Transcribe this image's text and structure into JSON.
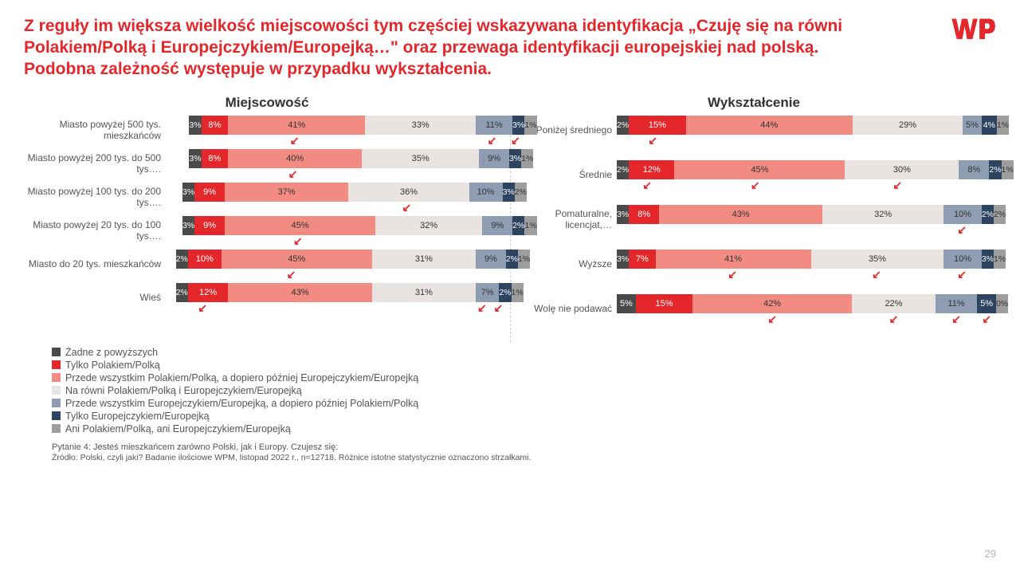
{
  "title": "Z reguły im większa wielkość miejscowości tym częściej wskazywana identyfikacja „Czuję się na równi Polakiem/Polką i Europejczykiem/Europejką…\" oraz przewaga identyfikacji europejskiej nad polską. Podobna zależność występuje w przypadku wykształcenia.",
  "logo_color": "#e3272a",
  "page_num": "29",
  "palette": {
    "none_above": "#4a4a4a",
    "only_pole": "#e3272a",
    "pole_first": "#f28b82",
    "equal": "#e9e4e2",
    "euro_first": "#8f9db2",
    "only_euro": "#2c4460",
    "neither": "#9e9e9e"
  },
  "legend": [
    {
      "key": "none_above",
      "label": "Żadne z powyższych"
    },
    {
      "key": "only_pole",
      "label": "Tylko Polakiem/Polką"
    },
    {
      "key": "pole_first",
      "label": "Przede wszystkim Polakiem/Polką, a dopiero później Europejczykiem/Europejką"
    },
    {
      "key": "equal",
      "label": "Na równi Polakiem/Polką i Europejczykiem/Europejką"
    },
    {
      "key": "euro_first",
      "label": "Przede wszystkim Europejczykiem/Europejką, a dopiero później Polakiem/Polką"
    },
    {
      "key": "only_euro",
      "label": "Tylko Europejczykiem/Europejką"
    },
    {
      "key": "neither",
      "label": "Ani Polakiem/Polką, ani Europejczykiem/Europejką"
    }
  ],
  "footnote_q": "Pytanie 4: Jesteś mieszkańcem zarówno Polski, jak i Europy. Czujesz się:",
  "footnote_src": "Źródło: Polski, czyli jaki? Badanie ilościowe WPM, listopad 2022 r., n=12718. Różnice istotne statystycznie oznaczono strzałkami.",
  "chart_left": {
    "title": "Miejscowość",
    "rows": [
      {
        "label": "Miasto powyżej 500 tys. mieszkańców",
        "spacer": 7,
        "segs": [
          {
            "k": "none_above",
            "v": 3,
            "t": "3%"
          },
          {
            "k": "only_pole",
            "v": 8,
            "t": "8%"
          },
          {
            "k": "pole_first",
            "v": 41,
            "t": "41%",
            "a": true
          },
          {
            "k": "equal",
            "v": 33,
            "t": "33%"
          },
          {
            "k": "euro_first",
            "v": 11,
            "t": "11%",
            "a": true
          },
          {
            "k": "only_euro",
            "v": 3,
            "t": "3%",
            "a": true
          },
          {
            "k": "neither",
            "v": 1,
            "t": "1%"
          }
        ]
      },
      {
        "label": "Miasto powyżej 200 tys. do 500 tys….",
        "spacer": 7,
        "segs": [
          {
            "k": "none_above",
            "v": 3,
            "t": "3%"
          },
          {
            "k": "only_pole",
            "v": 8,
            "t": "8%"
          },
          {
            "k": "pole_first",
            "v": 40,
            "t": "40%",
            "a": true
          },
          {
            "k": "equal",
            "v": 35,
            "t": "35%"
          },
          {
            "k": "euro_first",
            "v": 9,
            "t": "9%"
          },
          {
            "k": "only_euro",
            "v": 3,
            "t": "3%"
          },
          {
            "k": "neither",
            "v": 1,
            "t": "1%"
          }
        ]
      },
      {
        "label": "Miasto powyżej 100 tys. do 200 tys….",
        "spacer": 5,
        "segs": [
          {
            "k": "none_above",
            "v": 3,
            "t": "3%"
          },
          {
            "k": "only_pole",
            "v": 9,
            "t": "9%"
          },
          {
            "k": "pole_first",
            "v": 37,
            "t": "37%"
          },
          {
            "k": "equal",
            "v": 36,
            "t": "36%",
            "a": true
          },
          {
            "k": "euro_first",
            "v": 10,
            "t": "10%"
          },
          {
            "k": "only_euro",
            "v": 3,
            "t": "3%"
          },
          {
            "k": "neither",
            "v": 2,
            "t": "2%"
          }
        ]
      },
      {
        "label": "Miasto powyżej 20 tys. do 100 tys….",
        "spacer": 5,
        "segs": [
          {
            "k": "none_above",
            "v": 3,
            "t": "3%"
          },
          {
            "k": "only_pole",
            "v": 9,
            "t": "9%"
          },
          {
            "k": "pole_first",
            "v": 45,
            "t": "45%",
            "a": true
          },
          {
            "k": "equal",
            "v": 32,
            "t": "32%"
          },
          {
            "k": "euro_first",
            "v": 9,
            "t": "9%"
          },
          {
            "k": "only_euro",
            "v": 2,
            "t": "2%"
          },
          {
            "k": "neither",
            "v": 1,
            "t": "1%"
          }
        ]
      },
      {
        "label": "Miasto do 20 tys. mieszkańców",
        "spacer": 3,
        "segs": [
          {
            "k": "none_above",
            "v": 2,
            "t": "2%"
          },
          {
            "k": "only_pole",
            "v": 10,
            "t": "10%"
          },
          {
            "k": "pole_first",
            "v": 45,
            "t": "45%",
            "a": true
          },
          {
            "k": "equal",
            "v": 31,
            "t": "31%"
          },
          {
            "k": "euro_first",
            "v": 9,
            "t": "9%"
          },
          {
            "k": "only_euro",
            "v": 2,
            "t": "2%"
          },
          {
            "k": "neither",
            "v": 1,
            "t": "1%"
          }
        ]
      },
      {
        "label": "Wieś",
        "spacer": 3,
        "segs": [
          {
            "k": "none_above",
            "v": 2,
            "t": "2%"
          },
          {
            "k": "only_pole",
            "v": 12,
            "t": "12%",
            "a": true
          },
          {
            "k": "pole_first",
            "v": 43,
            "t": "43%"
          },
          {
            "k": "equal",
            "v": 31,
            "t": "31%"
          },
          {
            "k": "euro_first",
            "v": 7,
            "t": "7%",
            "a": true
          },
          {
            "k": "only_euro",
            "v": 2,
            "t": "2%",
            "a": true
          },
          {
            "k": "neither",
            "v": 1,
            "t": "1%"
          }
        ]
      }
    ]
  },
  "chart_right": {
    "title": "Wykształcenie",
    "rows": [
      {
        "label": "Poniżej średniego",
        "spacer": 0,
        "segs": [
          {
            "k": "none_above",
            "v": 2,
            "t": "2%"
          },
          {
            "k": "only_pole",
            "v": 15,
            "t": "15%",
            "a": true
          },
          {
            "k": "pole_first",
            "v": 44,
            "t": "44%"
          },
          {
            "k": "equal",
            "v": 29,
            "t": "29%"
          },
          {
            "k": "euro_first",
            "v": 5,
            "t": "5%"
          },
          {
            "k": "only_euro",
            "v": 4,
            "t": "4%"
          },
          {
            "k": "neither",
            "v": 1,
            "t": "1%"
          }
        ]
      },
      {
        "label": "Średnie",
        "spacer": 0,
        "segs": [
          {
            "k": "none_above",
            "v": 2,
            "t": "2%"
          },
          {
            "k": "only_pole",
            "v": 12,
            "t": "12%",
            "a": true
          },
          {
            "k": "pole_first",
            "v": 45,
            "t": "45%",
            "a": true
          },
          {
            "k": "equal",
            "v": 30,
            "t": "30%",
            "a": true
          },
          {
            "k": "euro_first",
            "v": 8,
            "t": "8%"
          },
          {
            "k": "only_euro",
            "v": 2,
            "t": "2%"
          },
          {
            "k": "neither",
            "v": 1,
            "t": "1%"
          }
        ]
      },
      {
        "label": "Pomaturalne, licencjat,…",
        "spacer": 0,
        "segs": [
          {
            "k": "none_above",
            "v": 3,
            "t": "3%"
          },
          {
            "k": "only_pole",
            "v": 8,
            "t": "8%"
          },
          {
            "k": "pole_first",
            "v": 43,
            "t": "43%"
          },
          {
            "k": "equal",
            "v": 32,
            "t": "32%"
          },
          {
            "k": "euro_first",
            "v": 10,
            "t": "10%",
            "a": true
          },
          {
            "k": "only_euro",
            "v": 2,
            "t": "2%"
          },
          {
            "k": "neither",
            "v": 2,
            "t": "2%"
          }
        ]
      },
      {
        "label": "Wyższe",
        "spacer": 0,
        "segs": [
          {
            "k": "none_above",
            "v": 3,
            "t": "3%"
          },
          {
            "k": "only_pole",
            "v": 7,
            "t": "7%"
          },
          {
            "k": "pole_first",
            "v": 41,
            "t": "41%",
            "a": true
          },
          {
            "k": "equal",
            "v": 35,
            "t": "35%",
            "a": true
          },
          {
            "k": "euro_first",
            "v": 10,
            "t": "10%",
            "a": true
          },
          {
            "k": "only_euro",
            "v": 3,
            "t": "3%"
          },
          {
            "k": "neither",
            "v": 1,
            "t": "1%"
          }
        ]
      },
      {
        "label": "Wolę nie podawać",
        "spacer": 0,
        "segs": [
          {
            "k": "none_above",
            "v": 5,
            "t": "5%"
          },
          {
            "k": "only_pole",
            "v": 15,
            "t": "15%"
          },
          {
            "k": "pole_first",
            "v": 42,
            "t": "42%",
            "a": true
          },
          {
            "k": "equal",
            "v": 22,
            "t": "22%",
            "a": true
          },
          {
            "k": "euro_first",
            "v": 11,
            "t": "11%",
            "a": true
          },
          {
            "k": "only_euro",
            "v": 5,
            "t": "5%",
            "a": true
          },
          {
            "k": "neither",
            "v": 0,
            "t": "0%"
          }
        ]
      }
    ]
  }
}
